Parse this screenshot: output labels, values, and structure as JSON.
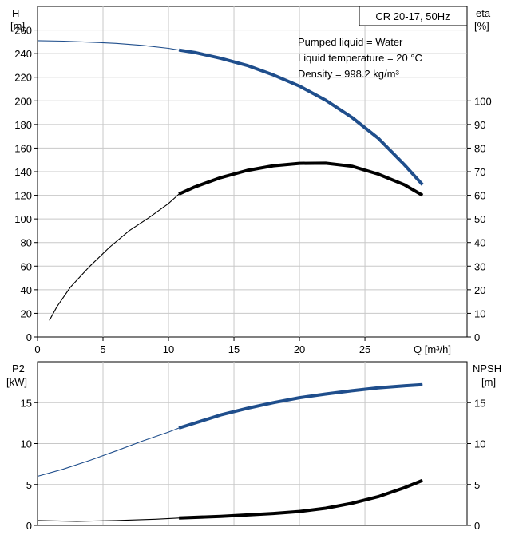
{
  "top_chart": {
    "title": "CR 20-17, 50Hz",
    "notes": [
      "Pumped liquid = Water",
      "Liquid temperature = 20 °C",
      "Density = 998.2 kg/m³"
    ],
    "y_left_label": [
      "H",
      "[m]"
    ],
    "y_right_label": [
      "eta",
      "[%]"
    ],
    "x_label": "Q [m³/h]"
  },
  "bottom_chart": {
    "y_left_label": [
      "P2",
      "[kW]"
    ],
    "y_right_label": [
      "NPSH",
      "[m]"
    ]
  },
  "colors": {
    "head": "#1f4e8c",
    "efficiency": "#000000",
    "grid": "#c8c8c8"
  },
  "chart_data": [
    {
      "type": "line",
      "x_range": [
        0,
        32.8
      ],
      "x_ticks": [
        0,
        5,
        10,
        15,
        20,
        25
      ],
      "y_left_range": [
        0,
        280
      ],
      "y_left_ticks": [
        0,
        20,
        40,
        60,
        80,
        100,
        120,
        140,
        160,
        180,
        200,
        220,
        240,
        260
      ],
      "y_right_range": [
        0,
        140
      ],
      "y_right_ticks": [
        0,
        10,
        20,
        30,
        40,
        50,
        60,
        70,
        80,
        90,
        100
      ],
      "grid": true,
      "series": [
        {
          "axis": "left",
          "color": "#1f4e8c",
          "x": [
            0,
            2,
            4,
            6,
            8,
            10,
            10.8,
            12,
            14,
            16,
            18,
            20,
            22,
            24,
            26,
            28,
            29.4
          ],
          "y": [
            251,
            250.6,
            249.7,
            248.7,
            247,
            244.5,
            243,
            241,
            236,
            230,
            222,
            212.5,
            200.5,
            186,
            168.5,
            146,
            129
          ],
          "bold_from_x": 10.8
        },
        {
          "axis": "right",
          "color": "#000000",
          "x": [
            0.9,
            1.5,
            2.5,
            4,
            5.5,
            7,
            8.5,
            10,
            10.8,
            12,
            14,
            16,
            18,
            20,
            22,
            24,
            26,
            28,
            29.4
          ],
          "y": [
            7,
            13,
            21,
            30,
            38,
            45,
            50.5,
            56.5,
            60.5,
            63.5,
            67.5,
            70.5,
            72.5,
            73.5,
            73.6,
            72.3,
            69,
            64.5,
            60
          ],
          "bold_from_x": 10.8
        }
      ]
    },
    {
      "type": "line",
      "x_range": [
        0,
        32.8
      ],
      "y_left_range": [
        0,
        20
      ],
      "y_left_ticks": [
        0,
        5,
        10,
        15
      ],
      "y_right_range": [
        0,
        20
      ],
      "y_right_ticks": [
        0,
        5,
        10,
        15
      ],
      "grid": true,
      "series": [
        {
          "axis": "left",
          "color": "#1f4e8c",
          "x": [
            0,
            2,
            4,
            6,
            8,
            10,
            10.8,
            12,
            14,
            16,
            18,
            20,
            22,
            24,
            26,
            28,
            29.4
          ],
          "y": [
            6.0,
            6.9,
            7.95,
            9.1,
            10.3,
            11.4,
            11.9,
            12.5,
            13.5,
            14.3,
            15.0,
            15.6,
            16.05,
            16.45,
            16.8,
            17.05,
            17.2
          ],
          "bold_from_x": 10.8
        },
        {
          "axis": "right",
          "color": "#000000",
          "x": [
            0,
            3,
            6,
            9,
            10.8,
            14,
            18,
            20,
            22,
            24,
            26,
            28,
            29.4
          ],
          "y": [
            0.6,
            0.5,
            0.6,
            0.75,
            0.9,
            1.1,
            1.45,
            1.7,
            2.1,
            2.7,
            3.5,
            4.6,
            5.5
          ],
          "bold_from_x": 10.8
        }
      ]
    }
  ]
}
